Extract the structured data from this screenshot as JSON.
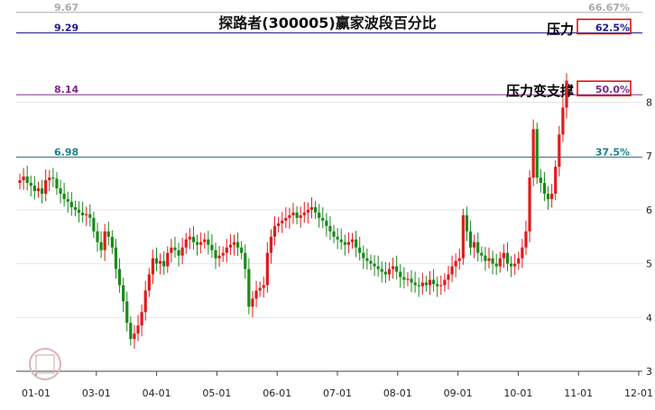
{
  "chart_data": {
    "type": "candlestick",
    "title": "探路者(300005)赢家波段百分比",
    "x_ticks": [
      "01-01",
      "03-01",
      "04-01",
      "05-01",
      "06-01",
      "07-01",
      "08-01",
      "09-01",
      "10-01",
      "11-01",
      "12-01"
    ],
    "y_ticks": [
      3,
      4,
      5,
      6,
      7,
      8
    ],
    "ylim": [
      3,
      9.8
    ],
    "levels": [
      {
        "price": "9.67",
        "pct": "66.67%",
        "value": 9.67,
        "color": "#aaaaaa",
        "boxed": false,
        "tag": ""
      },
      {
        "price": "9.29",
        "pct": "62.5%",
        "value": 9.29,
        "color": "#1a1a8c",
        "boxed": true,
        "tag": "压力"
      },
      {
        "price": "8.14",
        "pct": "50.0%",
        "value": 8.14,
        "color": "#7b2a86",
        "boxed": true,
        "tag": "压力变支撑"
      },
      {
        "price": "6.98",
        "pct": "37.5%",
        "value": 6.98,
        "color": "#1f7f86",
        "boxed": false,
        "tag": ""
      }
    ],
    "close_series": [
      6.55,
      6.62,
      6.5,
      6.45,
      6.35,
      6.4,
      6.3,
      6.55,
      6.6,
      6.58,
      6.4,
      6.3,
      6.2,
      6.15,
      6.05,
      6.0,
      5.95,
      5.9,
      5.92,
      5.85,
      5.6,
      5.4,
      5.25,
      5.6,
      5.5,
      5.3,
      4.9,
      4.6,
      4.3,
      3.9,
      3.6,
      3.7,
      3.85,
      4.1,
      4.5,
      4.8,
      5.1,
      5.0,
      5.05,
      4.95,
      5.2,
      5.3,
      5.25,
      5.15,
      5.3,
      5.45,
      5.5,
      5.4,
      5.35,
      5.4,
      5.45,
      5.35,
      5.25,
      5.1,
      5.15,
      5.2,
      5.3,
      5.35,
      5.4,
      5.3,
      5.2,
      4.9,
      4.2,
      4.35,
      4.5,
      4.55,
      4.6,
      5.2,
      5.5,
      5.7,
      5.75,
      5.8,
      5.85,
      5.9,
      5.95,
      5.85,
      5.9,
      5.95,
      6.0,
      6.05,
      5.95,
      5.85,
      5.8,
      5.7,
      5.6,
      5.5,
      5.45,
      5.4,
      5.35,
      5.4,
      5.45,
      5.3,
      5.2,
      5.1,
      5.05,
      5.0,
      4.95,
      4.9,
      4.85,
      4.8,
      4.9,
      4.95,
      4.85,
      4.75,
      4.7,
      4.72,
      4.65,
      4.6,
      4.58,
      4.65,
      4.6,
      4.7,
      4.62,
      4.58,
      4.6,
      4.7,
      4.8,
      4.95,
      5.05,
      5.1,
      5.9,
      5.6,
      5.3,
      5.4,
      5.2,
      5.15,
      5.05,
      5.1,
      5.0,
      4.95,
      5.1,
      5.2,
      5.0,
      4.95,
      5.0,
      5.1,
      5.3,
      5.6,
      6.6,
      7.5,
      6.6,
      6.5,
      6.3,
      6.2,
      6.3,
      6.8,
      7.4,
      7.9,
      8.4
    ]
  }
}
